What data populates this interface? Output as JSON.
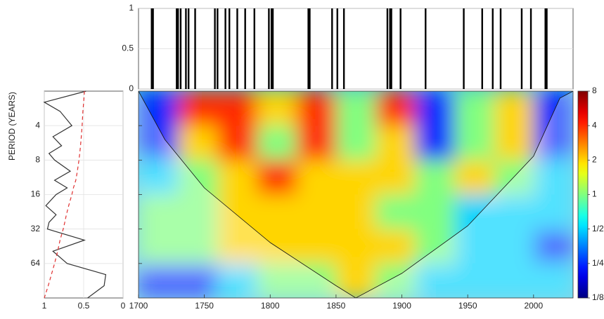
{
  "chart_data": [
    {
      "type": "event",
      "x": [
        1710,
        1711,
        1729,
        1730,
        1732,
        1736,
        1738,
        1743,
        1758,
        1760,
        1766,
        1769,
        1775,
        1781,
        1788,
        1799,
        1801,
        1802,
        1829,
        1830,
        1847,
        1851,
        1856,
        1889,
        1891,
        1892,
        1899,
        1918,
        1947,
        1961,
        1969,
        1975,
        1991,
        1998,
        2009,
        2010
      ],
      "values": [
        1,
        1,
        1,
        1,
        1,
        1,
        1,
        1,
        1,
        1,
        1,
        1,
        1,
        1,
        1,
        1,
        1,
        1,
        1,
        1,
        1,
        1,
        1,
        1,
        1,
        1,
        1,
        1,
        1,
        1,
        1,
        1,
        1,
        1,
        1,
        1
      ],
      "color": "#000000",
      "xlim": [
        1700,
        2030
      ],
      "ylim": [
        0,
        1
      ],
      "yticks": [
        0,
        0.5,
        1
      ],
      "grid": true
    },
    {
      "type": "line",
      "ylabel": "PERIOD (YEARS)",
      "y": [
        2,
        2.5,
        3,
        4,
        5,
        6,
        7,
        8,
        10,
        12,
        14,
        16,
        20,
        24,
        28,
        32,
        40,
        50,
        64,
        80,
        100,
        128
      ],
      "series": [
        {
          "color": "#333333",
          "values": [
            0.47,
            1.0,
            0.8,
            0.65,
            0.89,
            0.78,
            0.94,
            0.87,
            0.67,
            0.87,
            0.71,
            0.85,
            0.98,
            0.85,
            0.94,
            0.96,
            0.49,
            0.89,
            0.71,
            0.22,
            0.24,
            0.45
          ]
        },
        {
          "color": "#e03030",
          "dash": true,
          "values": [
            0.49,
            0.5,
            0.51,
            0.52,
            0.53,
            0.54,
            0.55,
            0.56,
            0.58,
            0.6,
            0.63,
            0.65,
            0.69,
            0.72,
            0.74,
            0.76,
            0.8,
            0.83,
            0.87,
            0.91,
            0.95,
            1.0
          ]
        }
      ],
      "xlim": [
        1,
        0
      ],
      "xticks": [
        1,
        0.5,
        0
      ],
      "ylim": [
        2,
        128
      ],
      "yticks": [
        4,
        8,
        16,
        32,
        64
      ],
      "log_y": true,
      "grid": true
    },
    {
      "type": "heatmap",
      "colormap": "jet",
      "x_edges": [
        1700,
        1730,
        1760,
        1790,
        1820,
        1850,
        1880,
        1910,
        1940,
        1970,
        2000,
        2030
      ],
      "y_edges": [
        2,
        4,
        8,
        16,
        32,
        64,
        128
      ],
      "z": [
        [
          0.25,
          4,
          4,
          2,
          4,
          1,
          4,
          0.25,
          1,
          2,
          0.25
        ],
        [
          0.25,
          2,
          4,
          1,
          4,
          1,
          2,
          0.25,
          1,
          2,
          0.25
        ],
        [
          0.5,
          1,
          2,
          4,
          2,
          2,
          2,
          1,
          2,
          1,
          0.5
        ],
        [
          1,
          1,
          2,
          2,
          2,
          2,
          1,
          1,
          0.5,
          0.5,
          0.5
        ],
        [
          1,
          1,
          2,
          2,
          2,
          2,
          2,
          1,
          0.5,
          0.5,
          0.25
        ],
        [
          0.25,
          0.25,
          0.5,
          1,
          1,
          2,
          1,
          0.5,
          0.5,
          0.5,
          0.5
        ]
      ],
      "xlim": [
        1700,
        2030
      ],
      "xticks": [
        1700,
        1750,
        1800,
        1850,
        1900,
        1950,
        2000
      ],
      "ylim": [
        2,
        128
      ],
      "log_y": true,
      "coi": {
        "x": [
          1700,
          1720,
          1750,
          1800,
          1850,
          1865,
          1900,
          1950,
          2000,
          2020,
          2030
        ],
        "y": [
          2,
          5.3,
          14,
          42,
          100,
          128,
          78,
          30,
          7.4,
          2.3,
          2
        ]
      },
      "colorbar": {
        "lim": [
          0.125,
          8
        ],
        "log": true,
        "ticks": [
          8,
          4,
          2,
          1,
          {
            "value": 0.5,
            "label": "1/2"
          },
          {
            "value": 0.25,
            "label": "1/4"
          },
          {
            "value": 0.125,
            "label": "1/8"
          }
        ]
      }
    }
  ]
}
